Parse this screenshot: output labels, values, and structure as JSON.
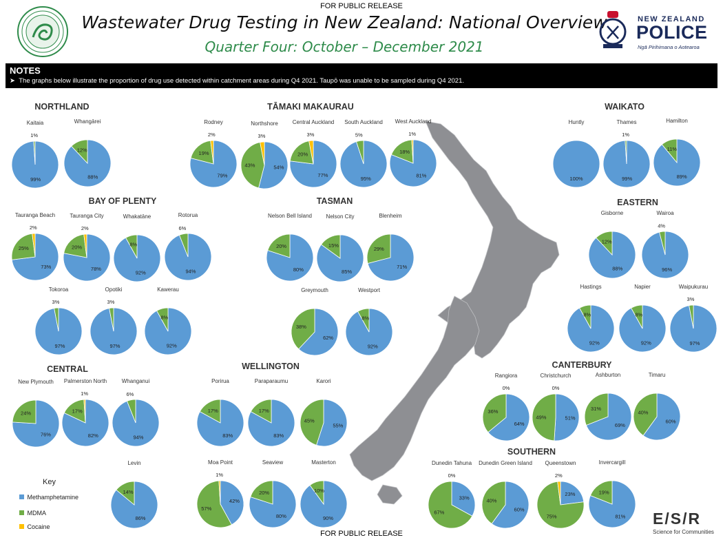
{
  "header": {
    "release_top": "FOR PUBLIC RELEASE",
    "release_bottom": "FOR PUBLIC RELEASE",
    "title": "Wastewater Drug Testing in New Zealand: National Overview",
    "subtitle": "Quarter Four: October – December 2021",
    "police_top": "NEW ZEALAND",
    "police_main": "POLICE",
    "police_sub": "Ngā Pirihimana o Aotearoa",
    "esr_logo": "E/S/R",
    "esr_tag": "Science for Communities"
  },
  "notes": {
    "heading": "NOTES",
    "text": "The graphs below illustrate the proportion of drug use detected within catchment areas during Q4 2021. Taupō was unable to be sampled during Q4 2021."
  },
  "key": {
    "heading": "Key",
    "items": [
      {
        "label": "Methamphetamine",
        "color": "#5b9bd5"
      },
      {
        "label": "MDMA",
        "color": "#70ad47"
      },
      {
        "label": "Cocaine",
        "color": "#ffc000"
      }
    ]
  },
  "colors": {
    "meth": "#5b9bd5",
    "mdma": "#70ad47",
    "cocaine": "#ffc000",
    "map": "#8e8f93"
  },
  "chart_data": {
    "type": "pie",
    "series_order": [
      "Methamphetamine",
      "MDMA",
      "Cocaine"
    ],
    "regions": [
      {
        "name": "NORTHLAND",
        "sites": [
          {
            "name": "Kaitaia",
            "values": [
              99,
              1,
              0
            ],
            "labels": [
              "99%",
              "1%",
              ""
            ]
          },
          {
            "name": "Whangārei",
            "values": [
              88,
              12,
              0
            ],
            "labels": [
              "88%",
              "12%",
              ""
            ]
          }
        ]
      },
      {
        "name": "TĀMAKI MAKAURAU",
        "sites": [
          {
            "name": "Rodney",
            "values": [
              79,
              19,
              2
            ],
            "labels": [
              "79%",
              "19%",
              "2%"
            ]
          },
          {
            "name": "Northshore",
            "values": [
              54,
              43,
              3
            ],
            "labels": [
              "54%",
              "43%",
              "3%"
            ]
          },
          {
            "name": "Central Auckland",
            "values": [
              77,
              20,
              3
            ],
            "labels": [
              "77%",
              "20%",
              "3%"
            ]
          },
          {
            "name": "South Auckland",
            "values": [
              95,
              5,
              0
            ],
            "labels": [
              "95%",
              "5%",
              ""
            ]
          },
          {
            "name": "West Auckland",
            "values": [
              81,
              18,
              1
            ],
            "labels": [
              "81%",
              "18%",
              "1%"
            ]
          }
        ]
      },
      {
        "name": "WAIKATO",
        "sites": [
          {
            "name": "Huntly",
            "values": [
              100,
              0,
              0
            ],
            "labels": [
              "100%",
              "",
              ""
            ]
          },
          {
            "name": "Thames",
            "values": [
              99,
              1,
              0
            ],
            "labels": [
              "99%",
              "1%",
              ""
            ]
          },
          {
            "name": "Hamilton",
            "values": [
              89,
              11,
              0
            ],
            "labels": [
              "89%",
              "11%",
              ""
            ]
          }
        ]
      },
      {
        "name": "BAY OF PLENTY",
        "sites": [
          {
            "name": "Tauranga Beach",
            "values": [
              73,
              25,
              2
            ],
            "labels": [
              "73%",
              "25%",
              "2%"
            ]
          },
          {
            "name": "Tauranga City",
            "values": [
              78,
              20,
              2
            ],
            "labels": [
              "78%",
              "20%",
              "2%"
            ]
          },
          {
            "name": "Whakatāne",
            "values": [
              92,
              8,
              0
            ],
            "labels": [
              "92%",
              "8%",
              ""
            ]
          },
          {
            "name": "Rotorua",
            "values": [
              94,
              6,
              0
            ],
            "labels": [
              "94%",
              "6%",
              ""
            ]
          },
          {
            "name": "Tokoroa",
            "values": [
              97,
              3,
              0
            ],
            "labels": [
              "97%",
              "3%",
              ""
            ]
          },
          {
            "name": "Opotiki",
            "values": [
              97,
              3,
              0
            ],
            "labels": [
              "97%",
              "3%",
              ""
            ]
          },
          {
            "name": "Kawerau",
            "values": [
              92,
              8,
              0
            ],
            "labels": [
              "92%",
              "8%",
              ""
            ]
          }
        ]
      },
      {
        "name": "TASMAN",
        "sites": [
          {
            "name": "Nelson Bell Island",
            "values": [
              80,
              20,
              0
            ],
            "labels": [
              "80%",
              "20%",
              ""
            ]
          },
          {
            "name": "Nelson City",
            "values": [
              85,
              15,
              0
            ],
            "labels": [
              "85%",
              "15%",
              ""
            ]
          },
          {
            "name": "Blenheim",
            "values": [
              71,
              29,
              0
            ],
            "labels": [
              "71%",
              "29%",
              ""
            ]
          },
          {
            "name": "Greymouth",
            "values": [
              62,
              38,
              0
            ],
            "labels": [
              "62%",
              "38%",
              ""
            ]
          },
          {
            "name": "Westport",
            "values": [
              92,
              8,
              0
            ],
            "labels": [
              "92%",
              "8%",
              ""
            ]
          }
        ]
      },
      {
        "name": "EASTERN",
        "sites": [
          {
            "name": "Gisborne",
            "values": [
              88,
              12,
              0
            ],
            "labels": [
              "88%",
              "12%",
              ""
            ]
          },
          {
            "name": "Wairoa",
            "values": [
              96,
              4,
              0
            ],
            "labels": [
              "96%",
              "4%",
              ""
            ]
          },
          {
            "name": "Hastings",
            "values": [
              92,
              8,
              0
            ],
            "labels": [
              "92%",
              "8%",
              ""
            ]
          },
          {
            "name": "Napier",
            "values": [
              92,
              8,
              0
            ],
            "labels": [
              "92%",
              "8%",
              ""
            ]
          },
          {
            "name": "Waipukurau",
            "values": [
              97,
              3,
              0
            ],
            "labels": [
              "97%",
              "3%",
              ""
            ]
          }
        ]
      },
      {
        "name": "CENTRAL",
        "sites": [
          {
            "name": "New Plymouth",
            "values": [
              76,
              24,
              0
            ],
            "labels": [
              "76%",
              "24%",
              ""
            ]
          },
          {
            "name": "Palmerston North",
            "values": [
              82,
              17,
              1
            ],
            "labels": [
              "82%",
              "17%",
              "1%"
            ]
          },
          {
            "name": "Whanganui",
            "values": [
              94,
              6,
              0
            ],
            "labels": [
              "94%",
              "6%",
              ""
            ]
          },
          {
            "name": "Levin",
            "values": [
              86,
              14,
              0
            ],
            "labels": [
              "86%",
              "14%",
              ""
            ]
          }
        ]
      },
      {
        "name": "WELLINGTON",
        "sites": [
          {
            "name": "Porirua",
            "values": [
              83,
              17,
              0
            ],
            "labels": [
              "83%",
              "17%",
              ""
            ]
          },
          {
            "name": "Paraparaumu",
            "values": [
              83,
              17,
              0
            ],
            "labels": [
              "83%",
              "17%",
              ""
            ]
          },
          {
            "name": "Karori",
            "values": [
              55,
              45,
              0
            ],
            "labels": [
              "55%",
              "45%",
              ""
            ]
          },
          {
            "name": "Moa Point",
            "values": [
              42,
              57,
              1
            ],
            "labels": [
              "42%",
              "57%",
              "1%"
            ]
          },
          {
            "name": "Seaview",
            "values": [
              80,
              20,
              0
            ],
            "labels": [
              "80%",
              "20%",
              ""
            ]
          },
          {
            "name": "Masterton",
            "values": [
              90,
              10,
              0
            ],
            "labels": [
              "90%",
              "10%",
              ""
            ]
          }
        ]
      },
      {
        "name": "CANTERBURY",
        "sites": [
          {
            "name": "Rangiora",
            "values": [
              64,
              36,
              0
            ],
            "labels": [
              "64%",
              "36%",
              "0%"
            ]
          },
          {
            "name": "Christchurch",
            "values": [
              51,
              49,
              0
            ],
            "labels": [
              "51%",
              "49%",
              "0%"
            ]
          },
          {
            "name": "Ashburton",
            "values": [
              69,
              31,
              0
            ],
            "labels": [
              "69%",
              "31%",
              ""
            ]
          },
          {
            "name": "Timaru",
            "values": [
              60,
              40,
              0
            ],
            "labels": [
              "60%",
              "40%",
              ""
            ]
          }
        ]
      },
      {
        "name": "SOUTHERN",
        "sites": [
          {
            "name": "Dunedin Tahuna",
            "values": [
              33,
              67,
              0
            ],
            "labels": [
              "33%",
              "67%",
              "0%"
            ]
          },
          {
            "name": "Dunedin Green Island",
            "values": [
              60,
              40,
              0
            ],
            "labels": [
              "60%",
              "40%",
              ""
            ]
          },
          {
            "name": "Queenstown",
            "values": [
              23,
              75,
              2
            ],
            "labels": [
              "23%",
              "75%",
              "2%"
            ]
          },
          {
            "name": "Invercargill",
            "values": [
              81,
              19,
              0
            ],
            "labels": [
              "81%",
              "19%",
              ""
            ]
          }
        ]
      }
    ]
  }
}
